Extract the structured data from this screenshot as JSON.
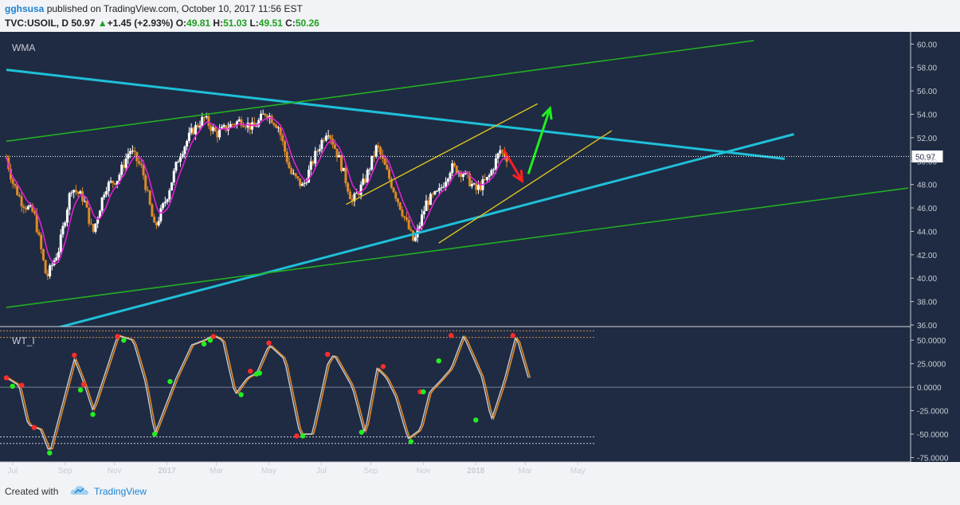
{
  "header": {
    "user": "gghsusa",
    "published": "published on TradingView.com, October 10, 2017 11:56 EST",
    "symbol": "TVC:USOIL, D",
    "last": "50.97",
    "change": "+1.45 (+2.93%)",
    "o_label": "O:",
    "o_value": "49.81",
    "h_label": "H:",
    "h_value": "51.03",
    "l_label": "L:",
    "l_value": "49.51",
    "c_label": "C:",
    "c_value": "50.26"
  },
  "footer": {
    "created_with": "Created with",
    "brand": "TradingView"
  },
  "colors": {
    "background": "#1f2b42",
    "bull": "#ffffff",
    "bear": "#e08a28",
    "wma": "#e020d0",
    "cyan": "#1ec0d8",
    "green": "#22b022",
    "yellow": "#d8c020",
    "red": "#ff2020",
    "arrow_green": "#22ee22"
  },
  "chart_data": [
    {
      "type": "candlestick",
      "indicator_label": "WMA",
      "x_ticks": [
        "Jul",
        "Sep",
        "Nov",
        "2017",
        "Mar",
        "May",
        "Jul",
        "Sep",
        "Nov",
        "2018",
        "Mar",
        "May"
      ],
      "y_ticks": [
        "60.00",
        "58.00",
        "56.00",
        "54.00",
        "52.00",
        "50.00",
        "48.00",
        "46.00",
        "44.00",
        "42.00",
        "40.00",
        "38.00",
        "36.00"
      ],
      "ylim": [
        36,
        60.5
      ],
      "last_price_label": "50.97",
      "last_price": 50.4,
      "close_path": [
        {
          "x": 2016.48,
          "y": 50.3
        },
        {
          "x": 2016.5,
          "y": 48.2
        },
        {
          "x": 2016.53,
          "y": 46.5
        },
        {
          "x": 2016.57,
          "y": 45.5
        },
        {
          "x": 2016.61,
          "y": 40.0
        },
        {
          "x": 2016.65,
          "y": 42.5
        },
        {
          "x": 2016.69,
          "y": 47.8
        },
        {
          "x": 2016.73,
          "y": 46.8
        },
        {
          "x": 2016.76,
          "y": 43.8
        },
        {
          "x": 2016.8,
          "y": 47.8
        },
        {
          "x": 2016.84,
          "y": 48.5
        },
        {
          "x": 2016.88,
          "y": 51.0
        },
        {
          "x": 2016.92,
          "y": 49.3
        },
        {
          "x": 2016.96,
          "y": 44.2
        },
        {
          "x": 2017.0,
          "y": 47.0
        },
        {
          "x": 2017.04,
          "y": 50.5
        },
        {
          "x": 2017.08,
          "y": 52.5
        },
        {
          "x": 2017.12,
          "y": 53.7
        },
        {
          "x": 2017.16,
          "y": 52.3
        },
        {
          "x": 2017.2,
          "y": 53.0
        },
        {
          "x": 2017.24,
          "y": 53.5
        },
        {
          "x": 2017.28,
          "y": 52.8
        },
        {
          "x": 2017.32,
          "y": 54.2
        },
        {
          "x": 2017.36,
          "y": 53.0
        },
        {
          "x": 2017.4,
          "y": 49.0
        },
        {
          "x": 2017.44,
          "y": 47.8
        },
        {
          "x": 2017.48,
          "y": 50.5
        },
        {
          "x": 2017.52,
          "y": 52.8
        },
        {
          "x": 2017.56,
          "y": 50.0
        },
        {
          "x": 2017.6,
          "y": 46.5
        },
        {
          "x": 2017.64,
          "y": 48.3
        },
        {
          "x": 2017.68,
          "y": 51.3
        },
        {
          "x": 2017.72,
          "y": 48.5
        },
        {
          "x": 2017.76,
          "y": 45.8
        },
        {
          "x": 2017.8,
          "y": 43.0
        },
        {
          "x": 2017.84,
          "y": 46.5
        },
        {
          "x": 2017.88,
          "y": 47.3
        },
        {
          "x": 2017.92,
          "y": 49.5
        },
        {
          "x": 2017.96,
          "y": 49.0
        },
        {
          "x": 2018.0,
          "y": 47.5
        },
        {
          "x": 2018.04,
          "y": 48.5
        },
        {
          "x": 2018.08,
          "y": 51.0
        },
        {
          "x": 2018.1,
          "y": 50.3
        }
      ],
      "wma_label": "WMA",
      "trendlines": [
        {
          "color": "cyan",
          "points": [
            {
              "x": 2016.48,
              "y": 57.8
            },
            {
              "x": 2019.0,
              "y": 50.2
            }
          ]
        },
        {
          "color": "cyan",
          "points": [
            {
              "x": 2016.65,
              "y": 35.8
            },
            {
              "x": 2019.03,
              "y": 52.3
            }
          ]
        },
        {
          "color": "green",
          "points": [
            {
              "x": 2016.48,
              "y": 51.7
            },
            {
              "x": 2018.9,
              "y": 60.3
            }
          ]
        },
        {
          "color": "green",
          "points": [
            {
              "x": 2016.48,
              "y": 37.5
            },
            {
              "x": 2019.4,
              "y": 47.7
            }
          ]
        },
        {
          "color": "yellow",
          "points": [
            {
              "x": 2017.58,
              "y": 46.3
            },
            {
              "x": 2018.2,
              "y": 54.9
            }
          ]
        },
        {
          "color": "yellow",
          "points": [
            {
              "x": 2017.88,
              "y": 43.0
            },
            {
              "x": 2018.44,
              "y": 52.6
            }
          ]
        }
      ],
      "annotations": [
        {
          "type": "arrow",
          "color": "red",
          "from": {
            "x": 2018.09,
            "y": 51.0
          },
          "to": {
            "x": 2018.15,
            "y": 48.3
          }
        },
        {
          "type": "arrow",
          "color": "green",
          "from": {
            "x": 2018.17,
            "y": 48.9
          },
          "to": {
            "x": 2018.24,
            "y": 54.5
          }
        }
      ]
    },
    {
      "type": "line",
      "indicator_label": "WT_I",
      "y_ticks": [
        "50.0000",
        "25.0000",
        "0.0000",
        "-25.0000",
        "-50.0000",
        "-75.0000"
      ],
      "ylim": [
        -78,
        62
      ],
      "levels": [
        60,
        53,
        0,
        -53,
        -60
      ],
      "series_path": [
        {
          "x": 2016.48,
          "y": 10
        },
        {
          "x": 2016.52,
          "y": 2
        },
        {
          "x": 2016.55,
          "y": -40
        },
        {
          "x": 2016.59,
          "y": -45
        },
        {
          "x": 2016.62,
          "y": -70
        },
        {
          "x": 2016.7,
          "y": 30
        },
        {
          "x": 2016.73,
          "y": 5
        },
        {
          "x": 2016.76,
          "y": -25
        },
        {
          "x": 2016.84,
          "y": 55
        },
        {
          "x": 2016.89,
          "y": 50
        },
        {
          "x": 2016.93,
          "y": 5
        },
        {
          "x": 2016.96,
          "y": -50
        },
        {
          "x": 2017.03,
          "y": 10
        },
        {
          "x": 2017.08,
          "y": 45
        },
        {
          "x": 2017.12,
          "y": 50
        },
        {
          "x": 2017.15,
          "y": 55
        },
        {
          "x": 2017.18,
          "y": 50
        },
        {
          "x": 2017.22,
          "y": -8
        },
        {
          "x": 2017.26,
          "y": 10
        },
        {
          "x": 2017.29,
          "y": 15
        },
        {
          "x": 2017.33,
          "y": 45
        },
        {
          "x": 2017.38,
          "y": 30
        },
        {
          "x": 2017.43,
          "y": -50
        },
        {
          "x": 2017.47,
          "y": -50
        },
        {
          "x": 2017.52,
          "y": 25
        },
        {
          "x": 2017.54,
          "y": 35
        },
        {
          "x": 2017.6,
          "y": 0
        },
        {
          "x": 2017.64,
          "y": -50
        },
        {
          "x": 2017.68,
          "y": 20
        },
        {
          "x": 2017.71,
          "y": 10
        },
        {
          "x": 2017.74,
          "y": -10
        },
        {
          "x": 2017.78,
          "y": -55
        },
        {
          "x": 2017.82,
          "y": -45
        },
        {
          "x": 2017.85,
          "y": -5
        },
        {
          "x": 2017.88,
          "y": 5
        },
        {
          "x": 2017.92,
          "y": 20
        },
        {
          "x": 2017.96,
          "y": 55
        },
        {
          "x": 2018.02,
          "y": 10
        },
        {
          "x": 2018.05,
          "y": -35
        },
        {
          "x": 2018.09,
          "y": 5
        },
        {
          "x": 2018.13,
          "y": 55
        },
        {
          "x": 2018.17,
          "y": 10
        }
      ],
      "dots": [
        {
          "x": 2016.48,
          "y": 10,
          "c": "red"
        },
        {
          "x": 2016.5,
          "y": 1,
          "c": "green"
        },
        {
          "x": 2016.53,
          "y": 2,
          "c": "red"
        },
        {
          "x": 2016.57,
          "y": -43,
          "c": "red"
        },
        {
          "x": 2016.62,
          "y": -70,
          "c": "green"
        },
        {
          "x": 2016.7,
          "y": 34,
          "c": "red"
        },
        {
          "x": 2016.72,
          "y": -3,
          "c": "green"
        },
        {
          "x": 2016.73,
          "y": 3,
          "c": "red"
        },
        {
          "x": 2016.76,
          "y": -29,
          "c": "green"
        },
        {
          "x": 2016.84,
          "y": 54,
          "c": "red"
        },
        {
          "x": 2016.86,
          "y": 50,
          "c": "green"
        },
        {
          "x": 2016.96,
          "y": -50,
          "c": "green"
        },
        {
          "x": 2017.01,
          "y": 6,
          "c": "green"
        },
        {
          "x": 2017.12,
          "y": 46,
          "c": "green"
        },
        {
          "x": 2017.14,
          "y": 50,
          "c": "green"
        },
        {
          "x": 2017.15,
          "y": 54,
          "c": "red"
        },
        {
          "x": 2017.24,
          "y": -8,
          "c": "green"
        },
        {
          "x": 2017.27,
          "y": 17,
          "c": "red"
        },
        {
          "x": 2017.29,
          "y": 14,
          "c": "green"
        },
        {
          "x": 2017.3,
          "y": 15,
          "c": "green"
        },
        {
          "x": 2017.33,
          "y": 47,
          "c": "red"
        },
        {
          "x": 2017.42,
          "y": -52,
          "c": "red"
        },
        {
          "x": 2017.44,
          "y": -52,
          "c": "green"
        },
        {
          "x": 2017.52,
          "y": 35,
          "c": "red"
        },
        {
          "x": 2017.63,
          "y": -48,
          "c": "green"
        },
        {
          "x": 2017.7,
          "y": 22,
          "c": "red"
        },
        {
          "x": 2017.79,
          "y": -58,
          "c": "green"
        },
        {
          "x": 2017.82,
          "y": -5,
          "c": "red"
        },
        {
          "x": 2017.83,
          "y": -5,
          "c": "green"
        },
        {
          "x": 2017.88,
          "y": 28,
          "c": "green"
        },
        {
          "x": 2017.92,
          "y": 55,
          "c": "red"
        },
        {
          "x": 2018.0,
          "y": -35,
          "c": "green"
        },
        {
          "x": 2018.12,
          "y": 55,
          "c": "red"
        }
      ]
    }
  ]
}
